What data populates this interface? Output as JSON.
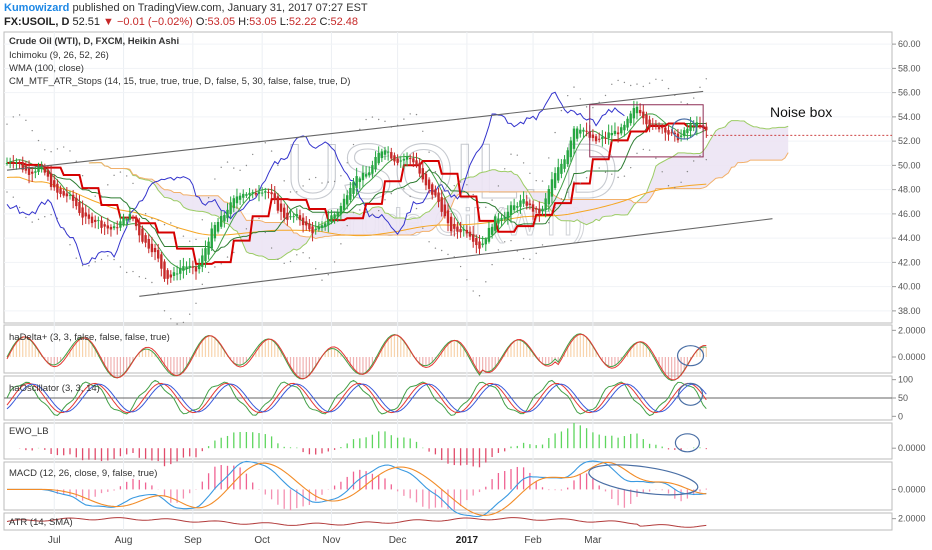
{
  "header": {
    "author": "Kumowizard",
    "published": "published on TradingView.com, January 31, 2017 07:27 EST",
    "symbol": "FX:USOIL, D",
    "last": "52.51",
    "change_icon": "down-triangle-icon",
    "change": "−0.01 (−0.02%)",
    "o_label": "O:",
    "o": "53.05",
    "h_label": "H:",
    "h": "53.05",
    "l_label": "L:",
    "l": "52.22",
    "c_label": "C:",
    "c": "52.48"
  },
  "watermark": {
    "main": "USOIL, D",
    "sub": "Crude Oil (WTI)"
  },
  "annotation": {
    "noise_box": "Noise box"
  },
  "colors": {
    "bull": "#26a641",
    "bear": "#c62828",
    "tenkan": "#2e7d32",
    "kijun_blue": "#3333cc",
    "wma": "#f5a623",
    "stops": "#d50000",
    "cloud": "#ece4f4",
    "macd": "#3b9ae1",
    "signal": "#f28c28",
    "hist_pos": "#f06292",
    "atr": "#b23b3b",
    "channel": "#666666",
    "ellipse": "#4a6fa5"
  },
  "chart_data": [
    {
      "type": "candlestick",
      "title": "Crude Oil (WTI), D, FXCM, Heikin Ashi",
      "indicators": [
        "Ichimoku (9, 26, 52, 26)",
        "WMA (100, close)",
        "CM_MTF_ATR_Stops (14, 15, true, true, true, D, false, 5, 30, false, false, true, D)"
      ],
      "ylim": [
        37,
        61
      ],
      "yticks": [
        "60.00",
        "58.00",
        "56.00",
        "54.00",
        "52.00",
        "50.00",
        "48.00",
        "46.00",
        "44.00",
        "42.00",
        "40.00",
        "38.00"
      ],
      "x_labels": [
        "Jul",
        "Aug",
        "Sep",
        "Oct",
        "Nov",
        "Dec",
        "2017",
        "Feb",
        "Mar"
      ],
      "price_anchors": {
        "x": [
          0,
          10,
          20,
          30,
          40,
          50,
          60,
          70,
          80,
          90,
          100,
          110,
          120,
          130,
          140,
          150,
          160,
          170,
          180,
          190,
          200,
          210,
          220
        ],
        "y": [
          50.2,
          49.6,
          47.0,
          44.8,
          45.6,
          41.0,
          41.6,
          46.8,
          48.2,
          45.6,
          44.6,
          48.5,
          51.2,
          50.0,
          45.2,
          43.6,
          46.8,
          46.4,
          53.0,
          52.0,
          54.5,
          52.4,
          53.2
        ]
      },
      "channel": {
        "upper": [
          [
            0,
            49.6
          ],
          [
            221,
            56.1
          ]
        ],
        "lower": [
          [
            42,
            39.2
          ],
          [
            243,
            45.6
          ]
        ]
      },
      "noise_box": {
        "from": 185,
        "to": 221,
        "top": 55.0,
        "bottom": 50.7
      },
      "last_price": 52.48
    },
    {
      "type": "line",
      "title": "haDelta+ (3, 3, false, false, false, true)",
      "yticks": [
        "2.0000",
        "0.0000"
      ],
      "ylim": [
        -1.2,
        2.4
      ]
    },
    {
      "type": "line",
      "title": "haOscillator (3, 3, 14)",
      "yticks": [
        "100",
        "50",
        "0"
      ],
      "ylim": [
        -10,
        110
      ]
    },
    {
      "type": "bar",
      "title": "EWO_LB",
      "yticks": [
        "0.0000"
      ],
      "ylim": [
        -1.2,
        2.8
      ]
    },
    {
      "type": "bar",
      "title": "MACD (12, 26, close, 9, false, true)",
      "yticks": [
        "0.0000"
      ],
      "ylim": [
        -1.5,
        2.0
      ]
    },
    {
      "type": "line",
      "title": "ATR (14, SMA)",
      "yticks": [
        "2.0000"
      ],
      "ylim": [
        0.8,
        2.6
      ]
    }
  ]
}
